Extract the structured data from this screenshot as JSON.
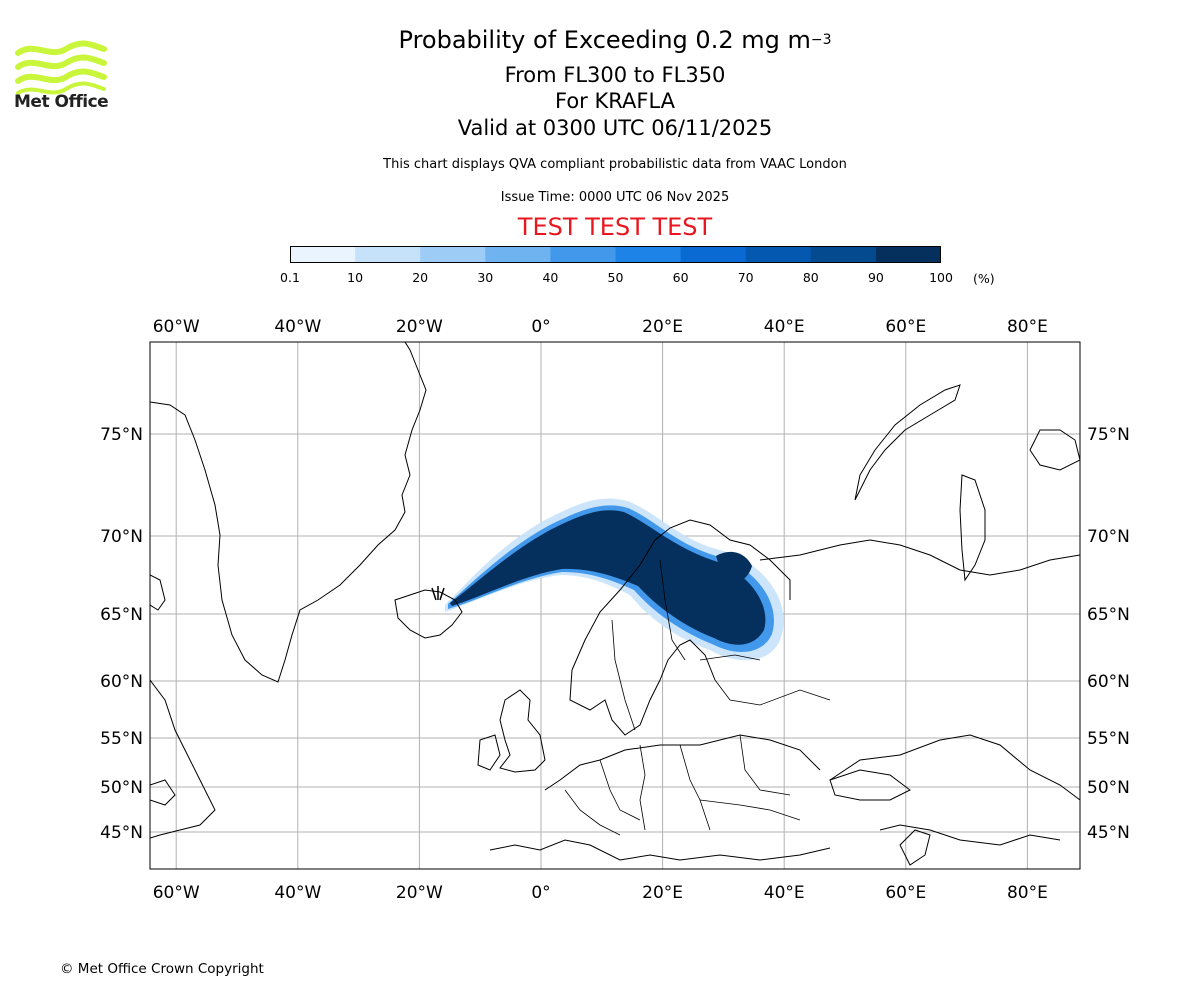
{
  "header": {
    "title_main": "Probability of Exceeding 0.2 mg m",
    "title_exponent": "−3",
    "flight_levels": "From FL300 to FL350",
    "volcano": "For KRAFLA",
    "valid_time": "Valid at 0300 UTC 06/11/2025",
    "data_source": "This chart displays QVA compliant probabilistic data from VAAC London",
    "issue_time": "Issue Time: 0000 UTC 06 Nov 2025",
    "test_banner": "TEST TEST TEST"
  },
  "logo": {
    "text": "Met Office",
    "color": "#c9f53b"
  },
  "colorbar": {
    "unit": "(%)",
    "bounds": [
      "0.1",
      "10",
      "20",
      "30",
      "40",
      "50",
      "60",
      "70",
      "80",
      "90",
      "100"
    ],
    "colors": [
      "#eaf4ff",
      "#c6e2fb",
      "#9dccf6",
      "#6fb3f1",
      "#4299ec",
      "#1e83e6",
      "#0a6ad3",
      "#0558b0",
      "#034a8f",
      "#05305e"
    ]
  },
  "map": {
    "longitude_labels": [
      "60°W",
      "40°W",
      "20°W",
      "0°",
      "20°E",
      "40°E",
      "60°E",
      "80°E"
    ],
    "longitudes": [
      -60,
      -40,
      -20,
      0,
      20,
      40,
      60,
      80
    ],
    "latitude_labels": [
      "75°N",
      "70°N",
      "65°N",
      "60°N",
      "55°N",
      "50°N",
      "45°N"
    ],
    "latitudes": [
      75,
      70,
      65,
      60,
      55,
      50,
      45
    ]
  },
  "footer": {
    "copyright": "© Met Office Crown Copyright"
  }
}
